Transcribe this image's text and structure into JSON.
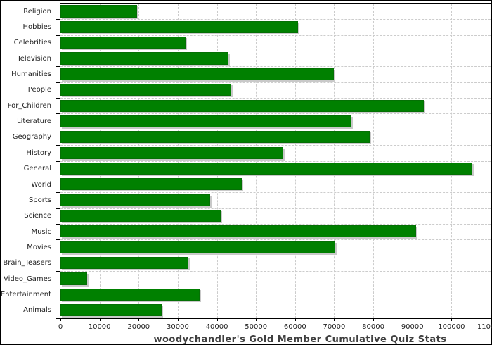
{
  "chart_data": {
    "type": "bar",
    "orientation": "horizontal",
    "title": "woodychandler's Gold Member Cumulative Quiz Stats",
    "categories": [
      "Religion",
      "Hobbies",
      "Celebrities",
      "Television",
      "Humanities",
      "People",
      "For_Children",
      "Literature",
      "Geography",
      "History",
      "General",
      "World",
      "Sports",
      "Science",
      "Music",
      "Movies",
      "Brain_Teasers",
      "Video_Games",
      "Entertainment",
      "Animals"
    ],
    "values": [
      19600,
      60800,
      32000,
      42900,
      69900,
      43700,
      92900,
      74500,
      79100,
      57000,
      105400,
      46300,
      38200,
      41000,
      91000,
      70300,
      32700,
      6900,
      35500,
      25900
    ],
    "xlabel": "",
    "ylabel": "",
    "xlim": [
      0,
      110000
    ],
    "x_ticks": [
      0,
      10000,
      20000,
      30000,
      40000,
      50000,
      60000,
      70000,
      80000,
      90000,
      100000,
      110000
    ],
    "x_tick_labels": [
      "0",
      "10000",
      "20000",
      "30000",
      "40000",
      "50000",
      "60000",
      "70000",
      "80000",
      "90000",
      "100000",
      "110000"
    ],
    "grid": true,
    "legend": false,
    "colors": {
      "bar": "#008000",
      "bar_shadow": "#c9c9c9",
      "grid_line": "#cccccc",
      "axis_line": "#000000",
      "tick_text": "#222222",
      "title_text": "#3f3f3f"
    }
  }
}
